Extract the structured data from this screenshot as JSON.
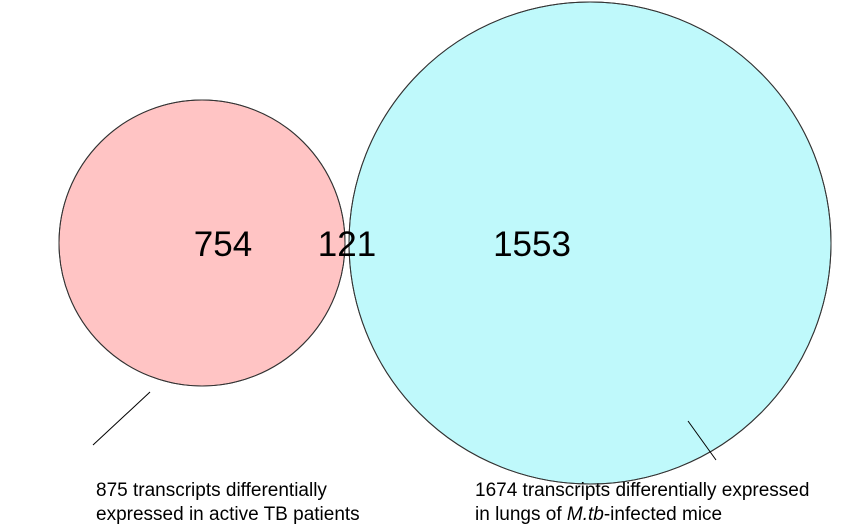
{
  "sets": {
    "left": {
      "fill_color": "#ffc4c4",
      "stroke_color": "#333333",
      "unique_count": "754",
      "caption_line1": "875 transcripts differentially",
      "caption_line2": "expressed in active TB patients"
    },
    "right": {
      "fill_color": "#bff9fb",
      "stroke_color": "#333333",
      "unique_count": "1553",
      "caption_line1": "1674 transcripts differentially expressed",
      "caption_line2_prefix": "in lungs of ",
      "caption_line2_italic": "M.tb",
      "caption_line2_suffix": "-infected mice"
    },
    "overlap": {
      "fill_color": "#c6fac4",
      "count": "121"
    }
  }
}
